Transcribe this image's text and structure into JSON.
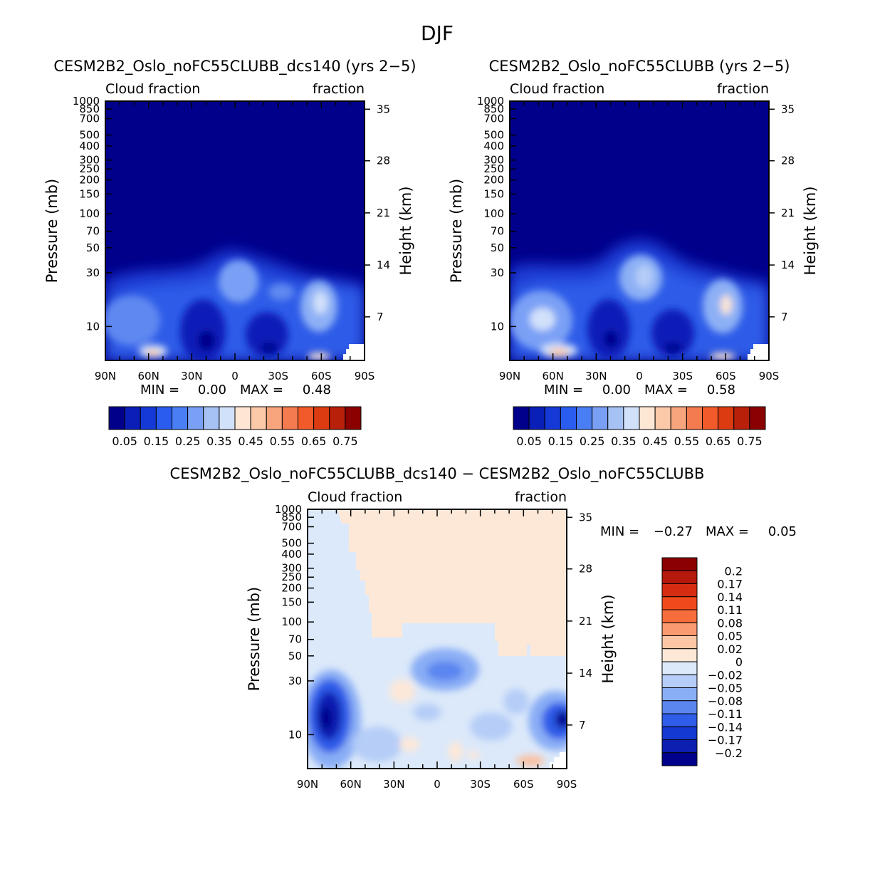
{
  "figure_title": "DJF",
  "pressure_axis": {
    "label": "Pressure (mb)",
    "ticks": [
      10,
      30,
      50,
      70,
      100,
      150,
      200,
      250,
      300,
      400,
      500,
      700,
      850,
      1000
    ],
    "tick_labels": [
      "10",
      "30",
      "50",
      "70",
      "100",
      "150",
      "200",
      "250",
      "300",
      "400",
      "500",
      "700",
      "850",
      "1000"
    ]
  },
  "height_axis": {
    "label": "Height (km)",
    "ticks": [
      7,
      14,
      21,
      28,
      35
    ],
    "tick_labels": [
      "7",
      "14",
      "21",
      "28",
      "35"
    ]
  },
  "latitude_axis": {
    "tick_labels": [
      "90N",
      "60N",
      "30N",
      "0",
      "30S",
      "60S",
      "90S"
    ]
  },
  "colorbar": {
    "levels": [
      "0.05",
      "0.15",
      "0.25",
      "0.35",
      "0.45",
      "0.55",
      "0.65",
      "0.75"
    ],
    "colors": [
      "#00008b",
      "#0a1fb8",
      "#1439d6",
      "#2a5cf0",
      "#4a7ef5",
      "#7aa0f5",
      "#a6c2f5",
      "#d2e1fa",
      "#fde6d4",
      "#fbc8a8",
      "#f8a47d",
      "#f47a50",
      "#f25a2a",
      "#dc3b12",
      "#b8200a",
      "#8b0000"
    ]
  },
  "diff_colorbar": {
    "levels": [
      "0.2",
      "0.17",
      "0.14",
      "0.11",
      "0.08",
      "0.05",
      "0.02",
      "0",
      "−0.02",
      "−0.05",
      "−0.08",
      "−0.11",
      "−0.14",
      "−0.17",
      "−0.2"
    ],
    "colors": [
      "#8b0000",
      "#b5180c",
      "#d62c12",
      "#f04a1c",
      "#f86d3c",
      "#fa9a70",
      "#fdc7a6",
      "#fde8d8",
      "#dce9fa",
      "#b5cdf7",
      "#8aaef5",
      "#5b86f0",
      "#2f5ce8",
      "#1438d2",
      "#0c1fb0",
      "#00008b"
    ]
  },
  "chart_data": [
    {
      "type": "heatmap",
      "panel": "test",
      "title": "CESM2B2_Oslo_noFC55CLUBB_dcs140 (yrs 2−5)",
      "left_label": "Cloud fraction",
      "right_label": "fraction",
      "x": [
        "90N",
        "60N",
        "30N",
        "0",
        "30S",
        "60S",
        "90S"
      ],
      "xlim": [
        90,
        -90
      ],
      "ylim_mb": [
        1000,
        5
      ],
      "min_text": "MIN =",
      "min_value": "0.00",
      "max_text": "MAX =",
      "max_value": "0.48",
      "min": 0.0,
      "max": 0.48
    },
    {
      "type": "heatmap",
      "panel": "control",
      "title": "CESM2B2_Oslo_noFC55CLUBB (yrs 2−5)",
      "left_label": "Cloud fraction",
      "right_label": "fraction",
      "x": [
        "90N",
        "60N",
        "30N",
        "0",
        "30S",
        "60S",
        "90S"
      ],
      "xlim": [
        90,
        -90
      ],
      "ylim_mb": [
        1000,
        5
      ],
      "min_text": "MIN =",
      "min_value": "0.00",
      "max_text": "MAX =",
      "max_value": "0.58",
      "min": 0.0,
      "max": 0.58
    },
    {
      "type": "heatmap",
      "panel": "difference",
      "title": "CESM2B2_Oslo_noFC55CLUBB_dcs140 − CESM2B2_Oslo_noFC55CLUBB",
      "left_label": "Cloud fraction",
      "right_label": "fraction",
      "x": [
        "90N",
        "60N",
        "30N",
        "0",
        "30S",
        "60S",
        "90S"
      ],
      "xlim": [
        90,
        -90
      ],
      "ylim_mb": [
        1000,
        5
      ],
      "min_text": "MIN =",
      "min_value": "−0.27",
      "max_text": "MAX =",
      "max_value": "0.05",
      "min": -0.27,
      "max": 0.05
    }
  ]
}
